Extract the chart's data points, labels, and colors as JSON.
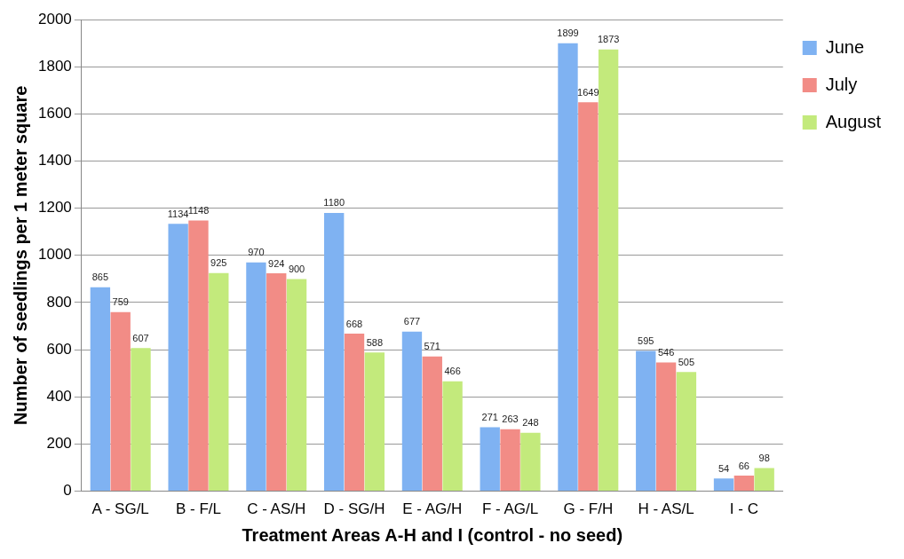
{
  "chart_data": {
    "type": "bar",
    "xlabel": "Treatment Areas A-H and I (control - no seed)",
    "ylabel": "Number of seedlings per 1 meter square",
    "categories": [
      "A - SG/L",
      "B - F/L",
      "C - AS/H",
      "D - SG/H",
      "E - AG/H",
      "F - AG/L",
      "G - F/H",
      "H - AS/L",
      "I - C"
    ],
    "series": [
      {
        "name": "June",
        "color": "#7fb2f2",
        "values": [
          865,
          1134,
          970,
          1180,
          677,
          271,
          1899,
          595,
          54
        ]
      },
      {
        "name": "July",
        "color": "#f28c86",
        "values": [
          759,
          1148,
          924,
          668,
          571,
          263,
          1649,
          546,
          66
        ]
      },
      {
        "name": "August",
        "color": "#c3ea7c",
        "values": [
          607,
          925,
          900,
          588,
          466,
          248,
          1873,
          505,
          98
        ]
      }
    ],
    "ylim": [
      0,
      2000
    ],
    "yticks": [
      0,
      200,
      400,
      600,
      800,
      1000,
      1200,
      1400,
      1600,
      1800,
      2000
    ],
    "grid": "y",
    "legend": "top right",
    "data_labels": true
  }
}
